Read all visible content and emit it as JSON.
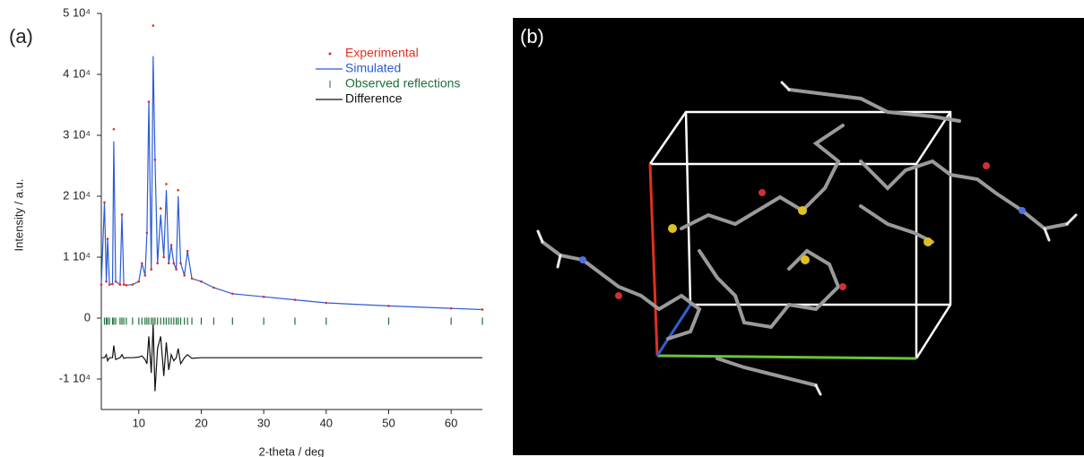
{
  "panels": {
    "a": "(a)",
    "b": "(b)"
  },
  "chart_data": {
    "type": "line",
    "x_label": "2-theta / deg",
    "y_label": "Intensity / a.u.",
    "x": [
      4,
      4.5,
      4.8,
      5,
      5.3,
      5.8,
      6,
      6.3,
      7,
      7.3,
      7.6,
      8,
      9,
      10,
      10.5,
      11,
      11.3,
      11.6,
      12,
      12.3,
      12.6,
      13,
      13.5,
      14,
      14.4,
      14.8,
      15.2,
      15.6,
      16,
      16.3,
      16.7,
      17.3,
      17.8,
      18.5,
      20,
      22,
      25,
      30,
      35,
      40,
      50,
      60,
      65
    ],
    "series": [
      {
        "name": "Experimental",
        "color": "#e03020",
        "mode": "markers",
        "values": [
          5500,
          19000,
          6000,
          13000,
          5500,
          5600,
          31000,
          6000,
          5500,
          17000,
          5500,
          5400,
          5500,
          6000,
          9000,
          7000,
          14000,
          35500,
          8000,
          48000,
          26000,
          9000,
          18000,
          10000,
          22000,
          9000,
          12000,
          9000,
          8000,
          21000,
          9000,
          7000,
          11000,
          6500,
          6000,
          5000,
          4000,
          3500,
          3000,
          2500,
          2000,
          1600,
          1400
        ]
      },
      {
        "name": "Simulated",
        "color": "#2a5bd7",
        "mode": "line",
        "values": [
          5500,
          19000,
          6000,
          13000,
          5500,
          5600,
          29000,
          6000,
          5500,
          17000,
          5500,
          5400,
          5500,
          6000,
          9000,
          7000,
          14000,
          35500,
          8000,
          43000,
          26000,
          9000,
          17000,
          10000,
          21000,
          9000,
          12000,
          9000,
          8000,
          20000,
          9000,
          7000,
          11000,
          6500,
          6000,
          5000,
          4000,
          3500,
          3000,
          2500,
          2000,
          1600,
          1400
        ]
      },
      {
        "name": "Observed reflections",
        "color": "#1f6e3a",
        "mode": "ticks",
        "values": [
          -500,
          -500,
          -500,
          -500,
          -500,
          -500,
          -500,
          -500,
          -500,
          -500,
          -500,
          -500,
          -500,
          -500,
          -500,
          -500,
          -500,
          -500,
          -500,
          -500,
          -500,
          -500,
          -500,
          -500,
          -500,
          -500,
          -500,
          -500,
          -500,
          -500,
          -500,
          -500,
          -500,
          -500,
          -500,
          -500,
          -500,
          -500,
          -500,
          -500,
          -500,
          -500,
          -500
        ]
      },
      {
        "name": "Difference",
        "color": "#111111",
        "mode": "line",
        "values": [
          -6500,
          -6500,
          -6000,
          -7000,
          -6500,
          -6500,
          -4500,
          -6800,
          -6500,
          -6000,
          -6600,
          -6500,
          -6500,
          -6400,
          -6200,
          -6800,
          -7500,
          -3000,
          -9000,
          -1000,
          -12000,
          -5000,
          -3000,
          -9500,
          -4000,
          -8500,
          -6000,
          -7000,
          -6500,
          -5000,
          -7500,
          -6500,
          -6000,
          -6600,
          -6500,
          -6500,
          -6500,
          -6500,
          -6500,
          -6500,
          -6500,
          -6500,
          -6500
        ]
      }
    ],
    "xlim": [
      4,
      65
    ],
    "xticks": [
      10,
      20,
      30,
      40,
      50,
      60
    ],
    "ylim": [
      -15000,
      50000
    ],
    "yticks": [
      {
        "value": -10000,
        "label": "-1 10⁴"
      },
      0,
      {
        "value": 10000,
        "label": "1 10⁴"
      },
      {
        "value": 20000,
        "label": "2 10⁴"
      },
      {
        "value": 30000,
        "label": "3 10⁴"
      },
      {
        "value": 40000,
        "label": "4 10⁴"
      },
      {
        "value": 50000,
        "label": "5 10⁴"
      }
    ],
    "legend": "top-right",
    "grid": false
  }
}
